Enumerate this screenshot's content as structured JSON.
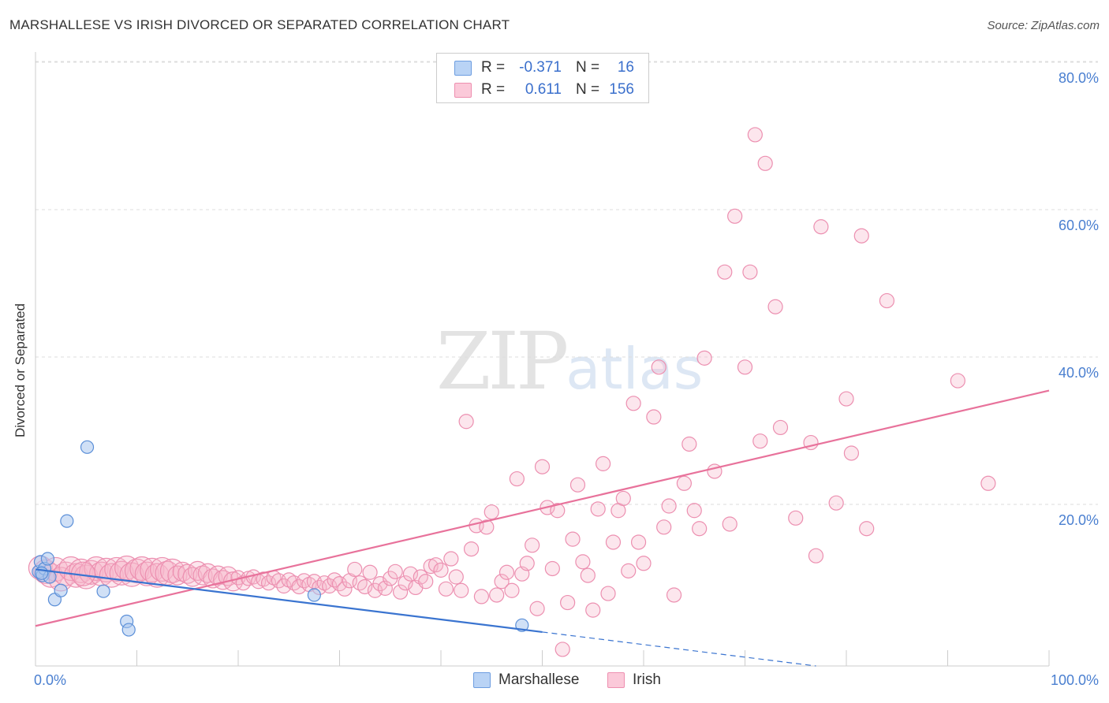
{
  "chart_data": {
    "type": "scatter",
    "title": "MARSHALLESE VS IRISH DIVORCED OR SEPARATED CORRELATION CHART",
    "source": "Source: ZipAtlas.com",
    "ylabel": "Divorced or Separated",
    "xlim": [
      0,
      100
    ],
    "ylim": [
      0,
      80
    ],
    "x_ticks_labeled": [
      "0.0%",
      "100.0%"
    ],
    "y_ticks": [
      {
        "value": 20,
        "label": "20.0%"
      },
      {
        "value": 40,
        "label": "40.0%"
      },
      {
        "value": 60,
        "label": "60.0%"
      },
      {
        "value": 80,
        "label": "80.0%"
      }
    ],
    "grid": true,
    "legend_position": "top-center",
    "series": [
      {
        "name": "Marshallese",
        "color": "#a9c6ef",
        "line_color": "#3a74d0",
        "r": "-0.371",
        "n": "16",
        "trend": {
          "x0": 0,
          "y0": 12.8,
          "x1": 50,
          "y1": 4.5,
          "dash_to_x": 77,
          "dash_to_y": 0
        },
        "points": [
          [
            0.3,
            12.5
          ],
          [
            0.5,
            13.8
          ],
          [
            0.7,
            12.0
          ],
          [
            0.9,
            12.9
          ],
          [
            1.2,
            14.2
          ],
          [
            1.4,
            11.8
          ],
          [
            1.9,
            8.8
          ],
          [
            2.5,
            10.0
          ],
          [
            3.1,
            19.2
          ],
          [
            5.1,
            29.0
          ],
          [
            6.7,
            9.9
          ],
          [
            9.0,
            5.9
          ],
          [
            9.2,
            4.8
          ],
          [
            27.5,
            9.4
          ],
          [
            48.0,
            5.4
          ],
          [
            0.6,
            12.3
          ]
        ]
      },
      {
        "name": "Irish",
        "color": "#f5b8cc",
        "line_color": "#e8729b",
        "r": "0.611",
        "n": "156",
        "trend": {
          "x0": 0,
          "y0": 5.3,
          "x1": 100,
          "y1": 36.5
        },
        "points": [
          [
            0.5,
            13.0
          ],
          [
            1.0,
            12.5
          ],
          [
            1.5,
            12.0
          ],
          [
            2.0,
            12.8
          ],
          [
            2.5,
            11.5
          ],
          [
            3.0,
            12.2
          ],
          [
            3.5,
            12.9
          ],
          [
            4.0,
            12.0
          ],
          [
            4.5,
            12.6
          ],
          [
            5.0,
            11.8
          ],
          [
            5.5,
            12.4
          ],
          [
            6.0,
            12.9
          ],
          [
            6.5,
            12.2
          ],
          [
            7.0,
            12.7
          ],
          [
            7.5,
            12.0
          ],
          [
            8.0,
            12.8
          ],
          [
            8.5,
            12.3
          ],
          [
            9.0,
            13.0
          ],
          [
            9.5,
            12.1
          ],
          [
            10.0,
            12.6
          ],
          [
            10.5,
            12.9
          ],
          [
            11.0,
            12.2
          ],
          [
            11.5,
            12.7
          ],
          [
            12.0,
            12.0
          ],
          [
            12.5,
            12.8
          ],
          [
            13.0,
            12.3
          ],
          [
            13.5,
            12.6
          ],
          [
            14.0,
            12.0
          ],
          [
            14.5,
            12.5
          ],
          [
            15.0,
            12.2
          ],
          [
            15.5,
            11.8
          ],
          [
            16.0,
            12.6
          ],
          [
            16.5,
            12.0
          ],
          [
            17.0,
            12.3
          ],
          [
            17.5,
            11.6
          ],
          [
            18.0,
            12.0
          ],
          [
            18.5,
            11.4
          ],
          [
            19.0,
            11.9
          ],
          [
            19.5,
            11.2
          ],
          [
            20.0,
            11.7
          ],
          [
            20.5,
            11.0
          ],
          [
            21.0,
            11.6
          ],
          [
            21.5,
            11.8
          ],
          [
            22.0,
            11.2
          ],
          [
            22.5,
            11.5
          ],
          [
            23.0,
            11.0
          ],
          [
            23.5,
            11.7
          ],
          [
            24.0,
            11.3
          ],
          [
            24.5,
            10.6
          ],
          [
            25.0,
            11.4
          ],
          [
            25.5,
            11.0
          ],
          [
            26.0,
            10.5
          ],
          [
            26.5,
            11.3
          ],
          [
            27.0,
            10.8
          ],
          [
            27.5,
            11.2
          ],
          [
            28.0,
            10.4
          ],
          [
            28.5,
            11.0
          ],
          [
            29.0,
            10.6
          ],
          [
            29.5,
            11.4
          ],
          [
            30.0,
            10.9
          ],
          [
            30.5,
            10.2
          ],
          [
            31.0,
            11.3
          ],
          [
            31.5,
            12.8
          ],
          [
            32.0,
            11.0
          ],
          [
            32.5,
            10.5
          ],
          [
            33.0,
            12.4
          ],
          [
            33.5,
            10.0
          ],
          [
            34.0,
            10.9
          ],
          [
            34.5,
            10.3
          ],
          [
            35.0,
            11.6
          ],
          [
            35.5,
            12.5
          ],
          [
            36.0,
            9.8
          ],
          [
            36.5,
            11.0
          ],
          [
            37.0,
            12.2
          ],
          [
            37.5,
            10.4
          ],
          [
            38.0,
            11.8
          ],
          [
            38.5,
            11.2
          ],
          [
            39.0,
            13.2
          ],
          [
            39.5,
            13.4
          ],
          [
            40.0,
            12.7
          ],
          [
            40.5,
            10.2
          ],
          [
            41.0,
            14.2
          ],
          [
            41.5,
            11.8
          ],
          [
            42.0,
            10.0
          ],
          [
            42.5,
            32.4
          ],
          [
            43.0,
            15.5
          ],
          [
            43.5,
            18.6
          ],
          [
            44.0,
            9.2
          ],
          [
            44.5,
            18.4
          ],
          [
            45.0,
            20.4
          ],
          [
            45.5,
            9.4
          ],
          [
            46.0,
            11.2
          ],
          [
            46.5,
            12.4
          ],
          [
            47.0,
            10.0
          ],
          [
            47.5,
            24.8
          ],
          [
            48.0,
            12.2
          ],
          [
            48.5,
            13.6
          ],
          [
            49.0,
            16.0
          ],
          [
            49.5,
            7.6
          ],
          [
            50.0,
            26.4
          ],
          [
            50.5,
            21.0
          ],
          [
            51.0,
            12.9
          ],
          [
            51.5,
            20.6
          ],
          [
            52.0,
            2.2
          ],
          [
            52.5,
            8.4
          ],
          [
            53.0,
            16.8
          ],
          [
            53.5,
            24.0
          ],
          [
            54.0,
            13.8
          ],
          [
            54.5,
            12.0
          ],
          [
            55.0,
            7.4
          ],
          [
            55.5,
            20.8
          ],
          [
            56.0,
            26.8
          ],
          [
            56.5,
            9.6
          ],
          [
            57.0,
            16.4
          ],
          [
            57.5,
            20.6
          ],
          [
            58.0,
            22.2
          ],
          [
            58.5,
            12.6
          ],
          [
            59.0,
            34.8
          ],
          [
            59.5,
            16.4
          ],
          [
            60.0,
            13.6
          ],
          [
            61.0,
            33.0
          ],
          [
            61.5,
            39.6
          ],
          [
            62.0,
            18.4
          ],
          [
            62.5,
            21.2
          ],
          [
            63.0,
            9.4
          ],
          [
            64.0,
            24.2
          ],
          [
            64.5,
            29.4
          ],
          [
            65.0,
            20.6
          ],
          [
            65.5,
            18.2
          ],
          [
            66.0,
            40.8
          ],
          [
            67.0,
            25.8
          ],
          [
            68.0,
            52.2
          ],
          [
            68.5,
            18.8
          ],
          [
            69.0,
            59.6
          ],
          [
            70.0,
            39.6
          ],
          [
            70.5,
            52.2
          ],
          [
            71.0,
            70.4
          ],
          [
            71.5,
            29.8
          ],
          [
            72.0,
            66.6
          ],
          [
            73.0,
            47.6
          ],
          [
            73.5,
            31.6
          ],
          [
            75.0,
            19.6
          ],
          [
            76.5,
            29.6
          ],
          [
            77.0,
            14.6
          ],
          [
            77.5,
            58.2
          ],
          [
            79.0,
            21.6
          ],
          [
            80.0,
            35.4
          ],
          [
            80.5,
            28.2
          ],
          [
            81.5,
            57.0
          ],
          [
            82.0,
            18.2
          ],
          [
            84.0,
            48.4
          ],
          [
            91.0,
            37.8
          ],
          [
            94.0,
            24.2
          ],
          [
            4.7,
            12.2
          ]
        ]
      }
    ]
  },
  "watermark": {
    "zip": "ZIP",
    "atlas": "atlas"
  }
}
